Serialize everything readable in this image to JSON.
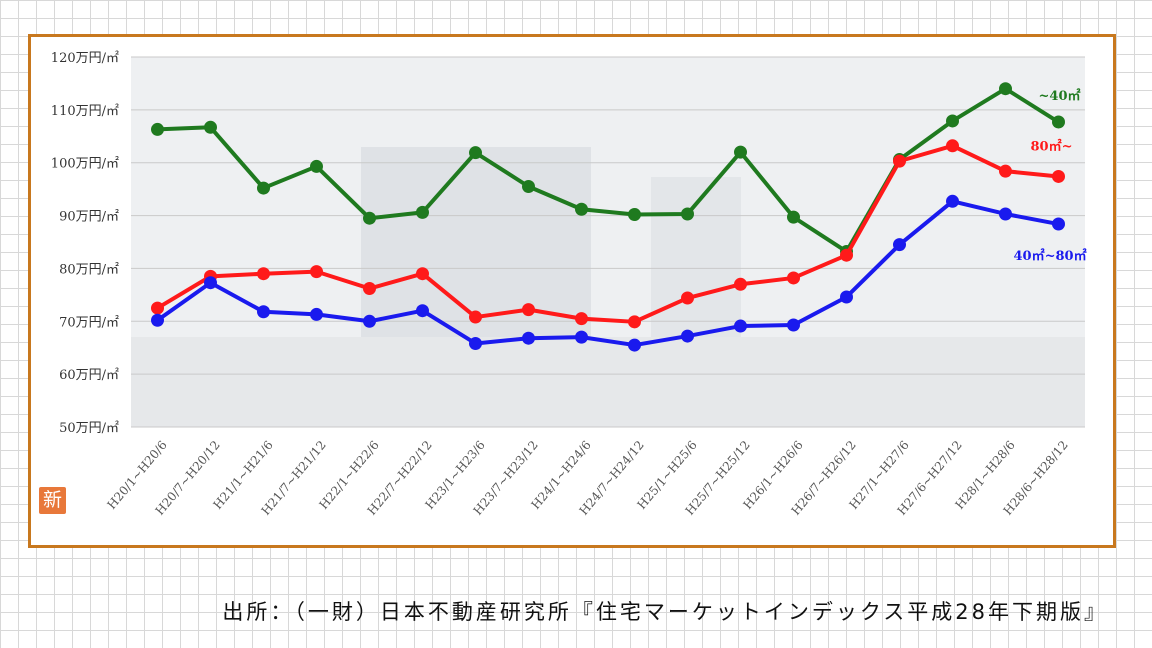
{
  "chart_data": {
    "type": "line",
    "title": "",
    "xlabel": "",
    "ylabel": "",
    "ylim": [
      50,
      120
    ],
    "yticks": [
      "50万円/㎡",
      "60万円/㎡",
      "70万円/㎡",
      "80万円/㎡",
      "90万円/㎡",
      "100万円/㎡",
      "110万円/㎡",
      "120万円/㎡"
    ],
    "ytick_values": [
      50,
      60,
      70,
      80,
      90,
      100,
      110,
      120
    ],
    "categories": [
      "H20/1~H20/6",
      "H20/7~H20/12",
      "H21/1~H21/6",
      "H21/7~H21/12",
      "H22/1~H22/6",
      "H22/7~H22/12",
      "H23/1~H23/6",
      "H23/7~H23/12",
      "H24/1~H24/6",
      "H24/7~H24/12",
      "H25/1~H25/6",
      "H25/7~H25/12",
      "H26/1~H26/6",
      "H26/7~H26/12",
      "H27/1~H27/6",
      "H27/6~H27/12",
      "H28/1~H28/6",
      "H28/6~H28/12"
    ],
    "series": [
      {
        "name": "~40㎡",
        "color": "#1f7a1f",
        "values": [
          106.3,
          106.7,
          95.2,
          99.3,
          89.5,
          90.6,
          101.9,
          95.5,
          91.2,
          90.2,
          90.3,
          102.0,
          89.7,
          83.2,
          100.6,
          107.9,
          114.0,
          107.7
        ]
      },
      {
        "name": "80㎡~",
        "color": "#ff1a1a",
        "values": [
          72.5,
          78.5,
          79.0,
          79.4,
          76.2,
          79.0,
          70.8,
          72.2,
          70.5,
          69.9,
          74.4,
          77.0,
          78.2,
          82.5,
          100.3,
          103.2,
          98.4,
          97.4
        ]
      },
      {
        "name": "40㎡~80㎡",
        "color": "#1a1aee",
        "values": [
          70.2,
          77.3,
          71.8,
          71.3,
          70.0,
          72.0,
          65.8,
          66.8,
          67.0,
          65.5,
          67.2,
          69.1,
          69.3,
          74.6,
          84.5,
          92.7,
          90.3,
          88.4
        ]
      }
    ],
    "grid": true,
    "legend": "inline-right"
  },
  "source_text": "出所：（一財）日本不動産研究所『住宅マーケットインデックス平成28年下期版』",
  "badge_text": "新"
}
